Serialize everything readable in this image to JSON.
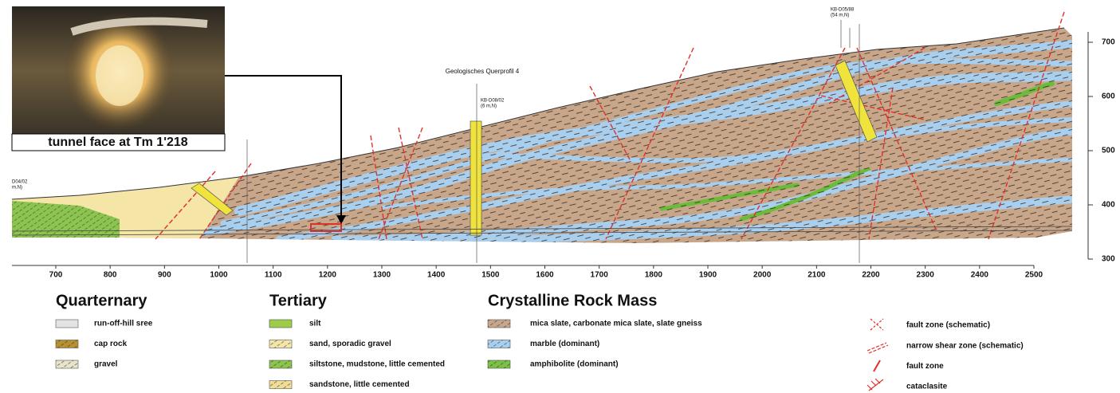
{
  "photo": {
    "caption": "tunnel face at Tm 1'218"
  },
  "section": {
    "title": "Geologisches Querprofil 4",
    "boreholes": [
      {
        "name": "D04/02",
        "depth": "m,N)"
      },
      {
        "name": "KB-D08/02",
        "depth": "(6 m,N)"
      },
      {
        "name": "KB-D05/88",
        "depth": "(54 m,N)"
      }
    ]
  },
  "x_axis": {
    "ticks": [
      700,
      800,
      900,
      1000,
      1100,
      1200,
      1300,
      1400,
      1500,
      1600,
      1700,
      1800,
      1900,
      2000,
      2100,
      2200,
      2300,
      2400,
      2500
    ]
  },
  "y_axis": {
    "ticks": [
      300,
      400,
      500,
      600,
      700
    ]
  },
  "legend": {
    "groups": [
      {
        "title": "Quarternary",
        "items": [
          {
            "label": "run-off-hill sree",
            "color": "#e3e3e3"
          },
          {
            "label": "cap rock",
            "color": "#b8912e"
          },
          {
            "label": "gravel",
            "color": "#e8e4c8"
          }
        ]
      },
      {
        "title": "Tertiary",
        "items": [
          {
            "label": "silt",
            "color": "#9ccc4a"
          },
          {
            "label": "sand, sporadic gravel",
            "color": "#f5e6a8"
          },
          {
            "label": "siltstone, mudstone, little cemented",
            "color": "#8cc44e"
          },
          {
            "label": "sandstone, little cemented",
            "color": "#f3dc94"
          }
        ]
      },
      {
        "title": "Crystalline Rock Mass",
        "items": [
          {
            "label": "mica slate, carbonate mica slate, slate gneiss",
            "color": "#c8a68a"
          },
          {
            "label": "marble (dominant)",
            "color": "#a9cfee"
          },
          {
            "label": "amphibolite (dominant)",
            "color": "#7cc144"
          }
        ]
      }
    ],
    "symbols": [
      "fault zone (schematic)",
      "narrow shear zone (schematic)",
      "fault zone",
      "cataclasite"
    ]
  }
}
